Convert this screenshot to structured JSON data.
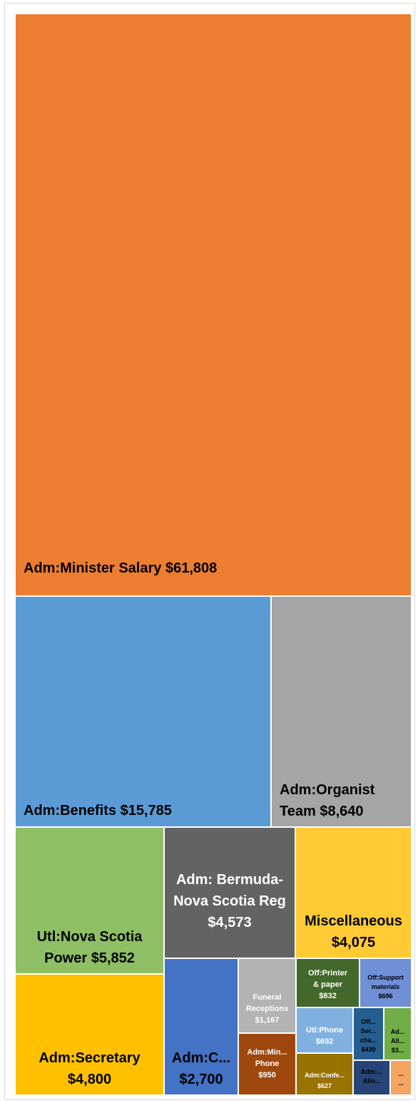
{
  "chart_data": {
    "type": "treemap",
    "items": [
      {
        "id": "minister-salary",
        "lines": [
          "Adm:Minister Salary $61,808"
        ],
        "value": 61808,
        "color": "#ED7D31",
        "text_color": "#000000"
      },
      {
        "id": "benefits",
        "lines": [
          "Adm:Benefits $15,785"
        ],
        "value": 15785,
        "color": "#5B9BD5",
        "text_color": "#000000"
      },
      {
        "id": "organist-team",
        "lines": [
          "Adm:Organist",
          "Team $8,640"
        ],
        "value": 8640,
        "color": "#A5A5A5",
        "text_color": "#000000"
      },
      {
        "id": "nova-scotia-power",
        "lines": [
          "Utl:Nova Scotia",
          "Power $5,852"
        ],
        "value": 5852,
        "color": "#8FBF64",
        "text_color": "#000000"
      },
      {
        "id": "secretary",
        "lines": [
          "Adm:Secretary",
          "$4,800"
        ],
        "value": 4800,
        "color": "#FFC000",
        "text_color": "#000000"
      },
      {
        "id": "bermuda-nova-scotia-reg",
        "lines": [
          "Adm: Bermuda-",
          "Nova Scotia Reg",
          "$4,573"
        ],
        "value": 4573,
        "color": "#636363",
        "text_color": "#ffffff"
      },
      {
        "id": "miscellaneous",
        "lines": [
          "Miscellaneous",
          "$4,075"
        ],
        "value": 4075,
        "color": "#FFCA33",
        "text_color": "#000000"
      },
      {
        "id": "adm-c",
        "lines": [
          "Adm:C...",
          "$2,700"
        ],
        "value": 2700,
        "color": "#4472C4",
        "text_color": "#000000"
      },
      {
        "id": "funeral-receptions",
        "lines": [
          "Funeral",
          "Receptions",
          "$1,167"
        ],
        "value": 1167,
        "color": "#B3B3B3",
        "text_color": "#ffffff"
      },
      {
        "id": "minister-phone",
        "lines": [
          "Adm:Min...",
          "Phone",
          "$950"
        ],
        "value": 950,
        "color": "#9E480E",
        "text_color": "#ffffff"
      },
      {
        "id": "printer-paper",
        "lines": [
          "Off:Printer",
          "& paper",
          "$832"
        ],
        "value": 832,
        "color": "#43682B",
        "text_color": "#ffffff"
      },
      {
        "id": "support-materials",
        "lines": [
          "Off:Support",
          "materials",
          "$696"
        ],
        "value": 696,
        "color": "#6F8FD6",
        "text_color": "#000000"
      },
      {
        "id": "utl-phone",
        "lines": [
          "Utl:Phone",
          "$692"
        ],
        "value": 692,
        "color": "#7FB0E0",
        "text_color": "#ffffff"
      },
      {
        "id": "adm-conference",
        "lines": [
          "Adm:Confe...",
          "$627"
        ],
        "value": 627,
        "color": "#997300",
        "text_color": "#ffffff"
      },
      {
        "id": "off-service-charges",
        "lines": [
          "Off...",
          "Ser...",
          "cha...",
          "$439"
        ],
        "value": 439,
        "color": "#255E91",
        "text_color": "#000000"
      },
      {
        "id": "adm-allowance-a",
        "lines": [
          "Ad...",
          "All...",
          "$3..."
        ],
        "value": 300,
        "color": "#70AD47",
        "text_color": "#000000"
      },
      {
        "id": "adm-allowance-b",
        "lines": [
          "Adm:...",
          "Allo..."
        ],
        "value": 280,
        "color": "#264478",
        "text_color": "#000000"
      },
      {
        "id": "other",
        "lines": [
          "...",
          "..."
        ],
        "value": 90,
        "color": "#F4A460",
        "text_color": "#000000"
      }
    ]
  }
}
